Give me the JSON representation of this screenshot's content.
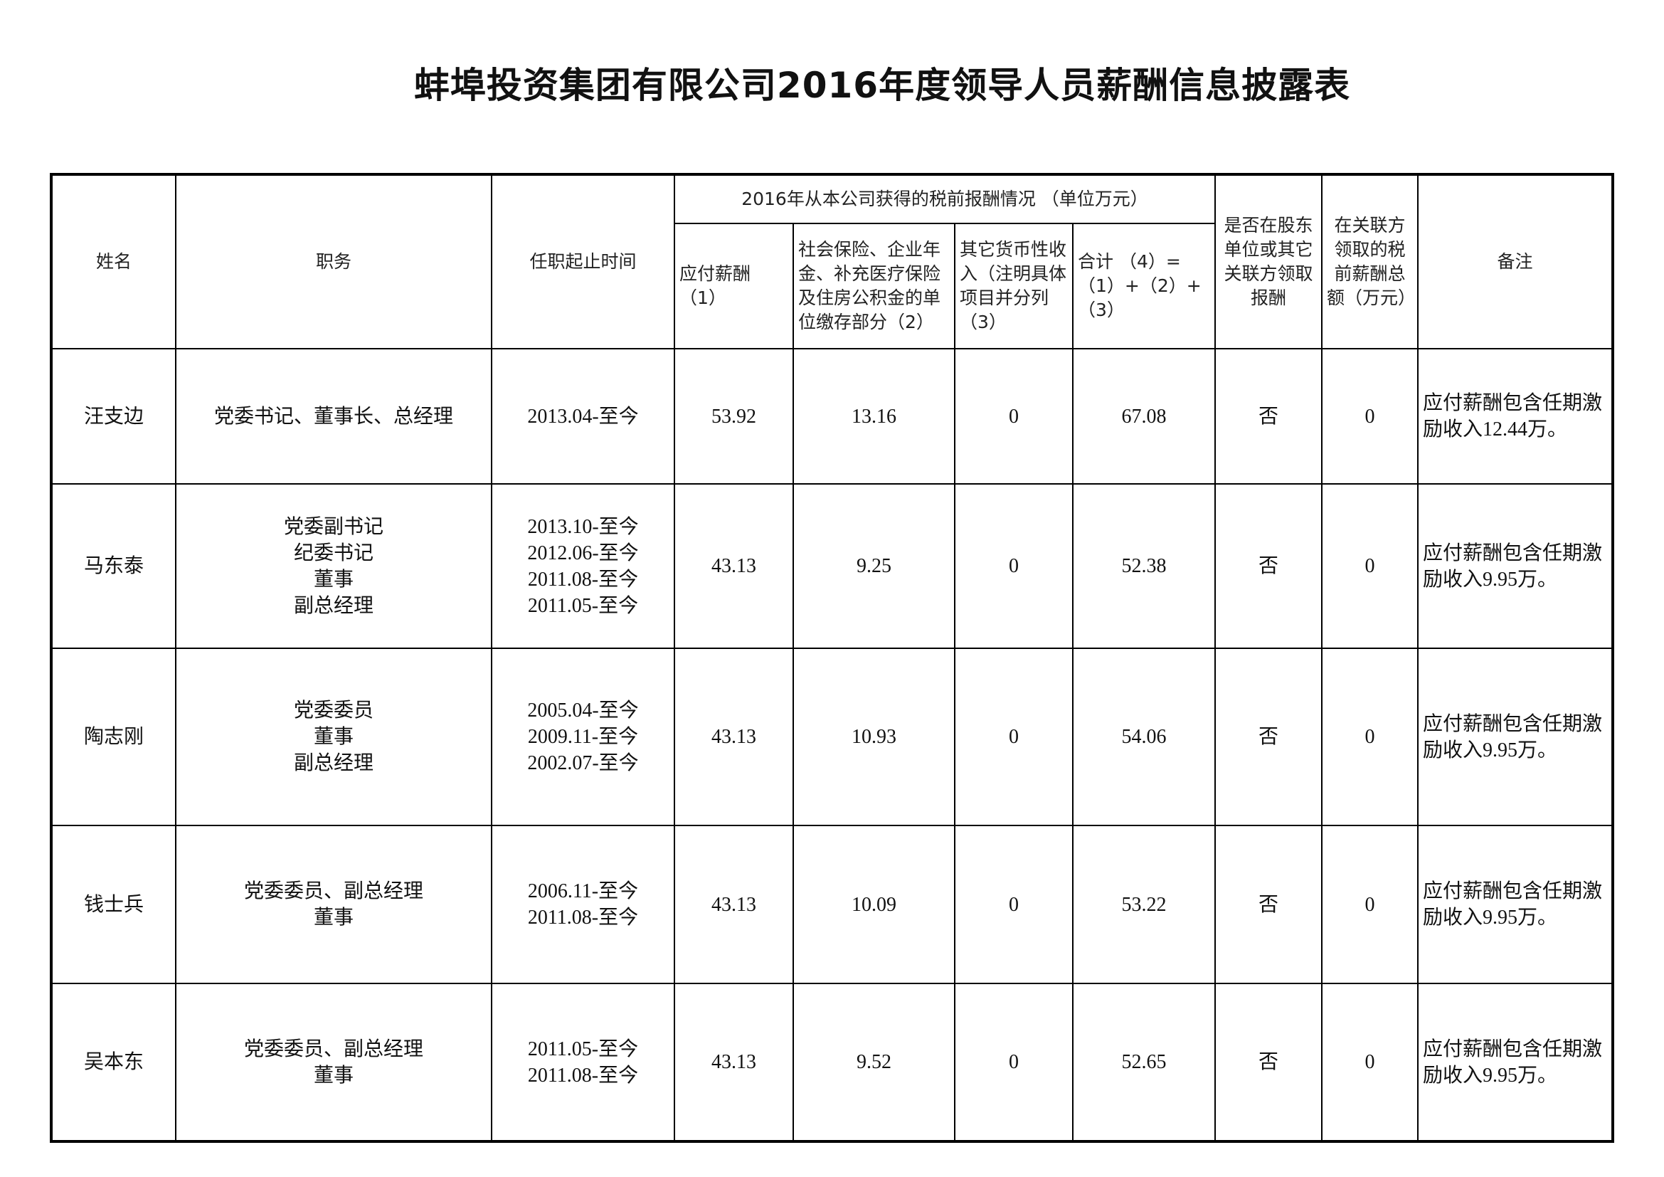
{
  "title": "蚌埠投资集团有限公司2016年度领导人员薪酬信息披露表",
  "headers": {
    "name": "姓名",
    "position": "职务",
    "tenure": "任职起止时间",
    "group": "2016年从本公司获得的税前报酬情况 （单位万元）",
    "salary": "应付薪酬（1）",
    "insurance": "社会保险、企业年金、补充医疗保险及住房公积金的单位缴存部分（2）",
    "other": "其它货币性收入（注明具体项目并分列（3）",
    "total": "合计 （4）=（1）+（2）+（3）",
    "related": "是否在股东单位或其它关联方领取报酬",
    "related_amount": "在关联方领取的税前薪酬总额（万元）",
    "remark": "备注"
  },
  "rows": [
    {
      "name": "汪支边",
      "positions": [
        "党委书记、董事长、总经理"
      ],
      "tenures": [
        "2013.04-至今"
      ],
      "salary": "53.92",
      "insurance": "13.16",
      "other": "0",
      "total": "67.08",
      "related": "否",
      "related_amount": "0",
      "remark": "应付薪酬包含任期激励收入12.44万。"
    },
    {
      "name": "马东泰",
      "positions": [
        "党委副书记",
        "纪委书记",
        "董事",
        "副总经理"
      ],
      "tenures": [
        "2013.10-至今",
        "2012.06-至今",
        "2011.08-至今",
        "2011.05-至今"
      ],
      "salary": "43.13",
      "insurance": "9.25",
      "other": "0",
      "total": "52.38",
      "related": "否",
      "related_amount": "0",
      "remark": "应付薪酬包含任期激励收入9.95万。"
    },
    {
      "name": "陶志刚",
      "positions": [
        "党委委员",
        "董事",
        "副总经理"
      ],
      "tenures": [
        "2005.04-至今",
        "2009.11-至今",
        "2002.07-至今"
      ],
      "salary": "43.13",
      "insurance": "10.93",
      "other": "0",
      "total": "54.06",
      "related": "否",
      "related_amount": "0",
      "remark": "应付薪酬包含任期激励收入9.95万。"
    },
    {
      "name": "钱士兵",
      "positions": [
        "党委委员、副总经理",
        "董事"
      ],
      "tenures": [
        "2006.11-至今",
        "2011.08-至今"
      ],
      "salary": "43.13",
      "insurance": "10.09",
      "other": "0",
      "total": "53.22",
      "related": "否",
      "related_amount": "0",
      "remark": "应付薪酬包含任期激励收入9.95万。"
    },
    {
      "name": "吴本东",
      "positions": [
        "党委委员、副总经理",
        "董事"
      ],
      "tenures": [
        "2011.05-至今",
        "2011.08-至今"
      ],
      "salary": "43.13",
      "insurance": "9.52",
      "other": "0",
      "total": "52.65",
      "related": "否",
      "related_amount": "0",
      "remark": "应付薪酬包含任期激励收入9.95万。"
    }
  ]
}
